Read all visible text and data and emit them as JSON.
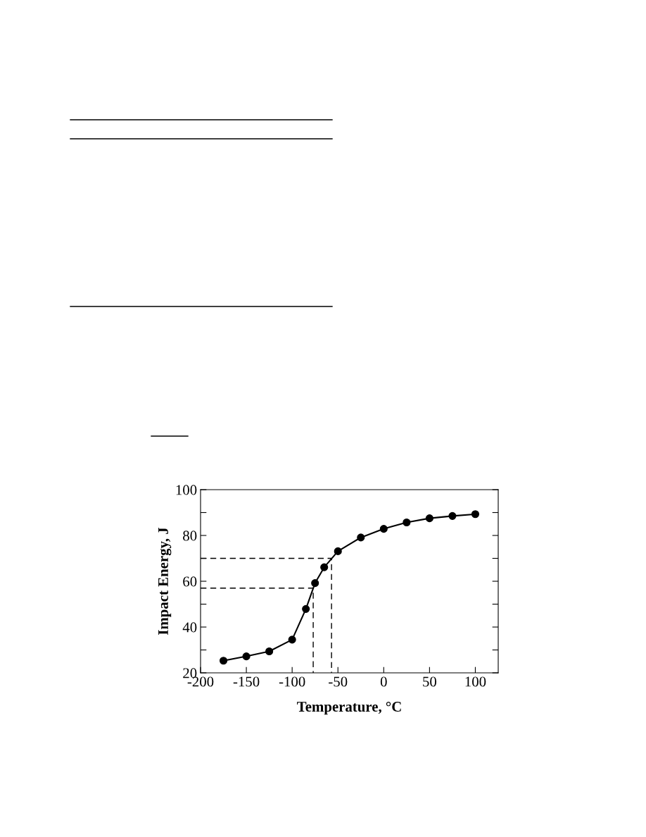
{
  "chart_data": {
    "type": "line",
    "xlabel": "Temperature, °C",
    "ylabel": "Impact Energy, J",
    "x": [
      -175,
      -150,
      -125,
      -100,
      -85,
      -75,
      -65,
      -50,
      -25,
      0,
      25,
      50,
      75,
      100
    ],
    "series": [
      {
        "color": "#000000",
        "marker": "circle",
        "line_style": "solid",
        "values": [
          25.3,
          27.2,
          29.4,
          34.5,
          47.9,
          59.2,
          66.1,
          73.1,
          79.1,
          82.9,
          85.7,
          87.5,
          88.5,
          89.3
        ]
      },
      {
        "type": "line",
        "color": "#000000",
        "marker": "none",
        "line_style": "dashed",
        "x": [
          -200,
          -57,
          -57
        ],
        "values": [
          70,
          70,
          20
        ]
      },
      {
        "type": "line",
        "color": "#000000",
        "marker": "none",
        "line_style": "dashed",
        "x": [
          -200,
          -77,
          -77
        ],
        "values": [
          57,
          57,
          20
        ]
      }
    ],
    "xlim": [
      -200,
      125
    ],
    "ylim": [
      20,
      100
    ],
    "xticks": [
      -200,
      -150,
      -100,
      -50,
      0,
      50,
      100
    ],
    "yticks": [
      20,
      {
        "value": 30,
        "label": null
      },
      40,
      {
        "value": 50,
        "label": null
      },
      60,
      {
        "value": 70,
        "label": null
      },
      80,
      {
        "value": 90,
        "label": null
      },
      100
    ],
    "grid": false,
    "legend": false
  }
}
